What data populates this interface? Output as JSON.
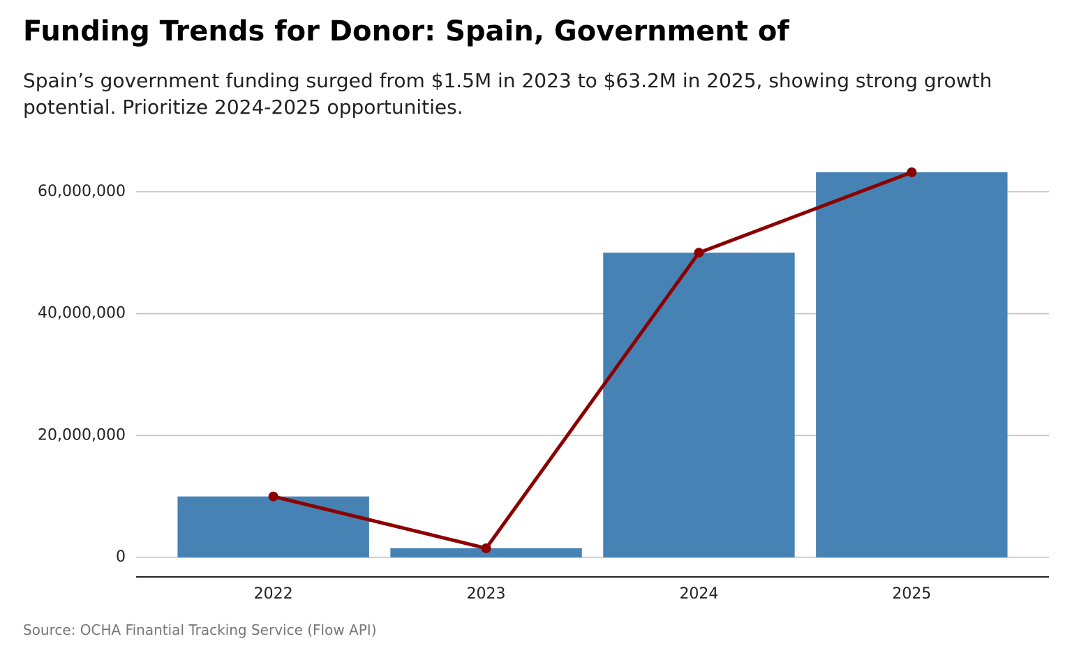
{
  "chart_data": {
    "type": "bar",
    "title": "Funding Trends for Donor: Spain, Government of",
    "subtitle": "Spain’s government funding surged from $1.5M in 2023 to $63.2M in 2025, showing strong growth potential. Prioritize 2024-2025 opportunities.",
    "source": "Source: OCHA Finantial Tracking Service (Flow API)",
    "categories": [
      "2022",
      "2023",
      "2024",
      "2025"
    ],
    "values": [
      10000000,
      1500000,
      50000000,
      63200000
    ],
    "color": "#4682b4",
    "line_overlay": true,
    "line_color": "#8b0000",
    "ylim": [
      -3200000,
      66400000
    ],
    "yticks": [
      0,
      {
        "value": 20000000,
        "label": "20,000,000"
      },
      {
        "value": 40000000,
        "label": "40,000,000"
      },
      {
        "value": 60000000,
        "label": "60,000,000"
      }
    ],
    "grid": true
  }
}
